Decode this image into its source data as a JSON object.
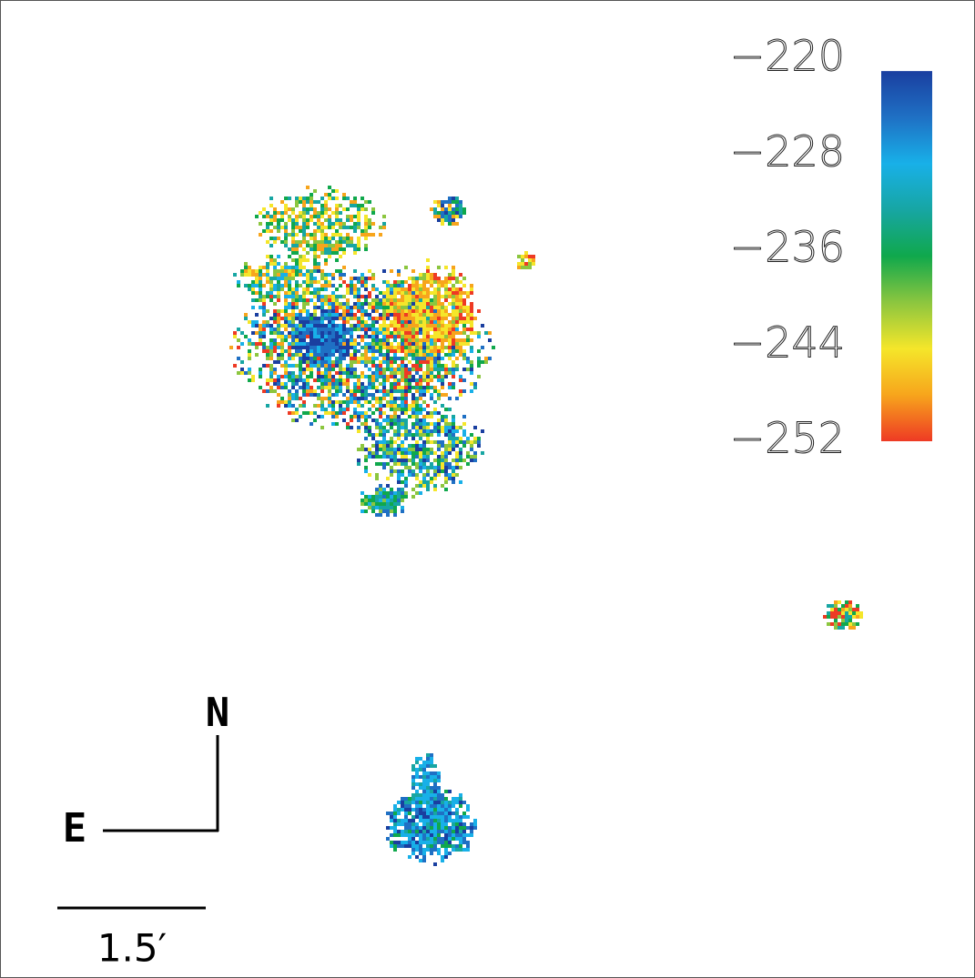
{
  "chart_data": {
    "type": "velocity-map",
    "colorbar": {
      "clim": [
        -221,
        -252
      ],
      "ticks": [
        {
          "value": -220,
          "label": "−220"
        },
        {
          "value": -228,
          "label": "−228"
        },
        {
          "value": -236,
          "label": "−236"
        },
        {
          "value": -244,
          "label": "−244"
        },
        {
          "value": -252,
          "label": "−252"
        }
      ],
      "colors": [
        "#1a3fa0",
        "#1f70c4",
        "#18b0e8",
        "#17a6a3",
        "#10a84c",
        "#8cc63f",
        "#f5e62a",
        "#f7a51c",
        "#ee3a24"
      ]
    },
    "compass": {
      "north": "N",
      "east": "E"
    },
    "scale_bar": "1.5′"
  }
}
